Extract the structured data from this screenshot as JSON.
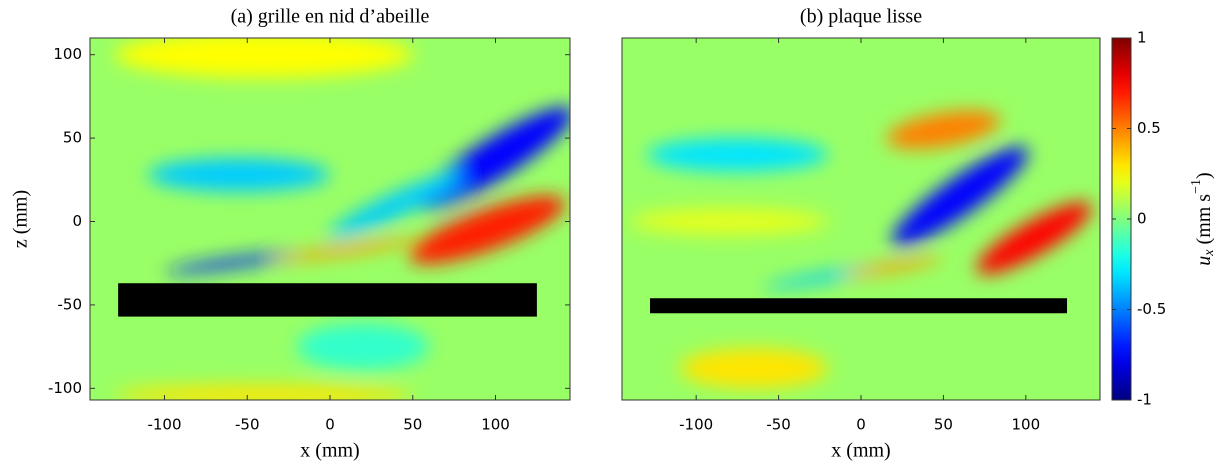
{
  "chart_data": [
    {
      "type": "field",
      "title": "(a) grille en nid d’abeille",
      "xlabel": "x (mm)",
      "ylabel": "z (mm)",
      "xlim": [
        -145,
        145
      ],
      "ylim": [
        -107,
        110
      ],
      "xticks": [
        -100,
        -50,
        0,
        50,
        100
      ],
      "yticks": [
        -100,
        -50,
        0,
        50,
        100
      ],
      "background_value": 0.05,
      "features": [
        {
          "x": -40,
          "z": 100,
          "rx": 90,
          "rz": 14,
          "angle": 0,
          "value": 0.25
        },
        {
          "x": -55,
          "z": 28,
          "rx": 55,
          "rz": 10,
          "angle": 0,
          "value": -0.35
        },
        {
          "x": 100,
          "z": 38,
          "rx": 55,
          "rz": 12,
          "angle": -32,
          "value": -0.75
        },
        {
          "x": 40,
          "z": 10,
          "rx": 45,
          "rz": 7,
          "angle": -25,
          "value": -0.35
        },
        {
          "x": 95,
          "z": -5,
          "rx": 50,
          "rz": 12,
          "angle": -20,
          "value": 0.7
        },
        {
          "x": -60,
          "z": -25,
          "rx": 40,
          "rz": 3,
          "angle": -8,
          "value": -0.7
        },
        {
          "x": 10,
          "z": -17,
          "rx": 45,
          "rz": 3,
          "angle": -8,
          "value": 0.45
        },
        {
          "x": -40,
          "z": -104,
          "rx": 90,
          "rz": 6,
          "angle": 0,
          "value": 0.3
        },
        {
          "x": 20,
          "z": -75,
          "rx": 40,
          "rz": 14,
          "angle": 0,
          "value": -0.15
        }
      ],
      "obstacle": {
        "x": [
          -128,
          125
        ],
        "z": [
          -57,
          -37
        ]
      }
    },
    {
      "type": "field",
      "title": "(b) plaque lisse",
      "xlabel": "x (mm)",
      "xlim": [
        -145,
        145
      ],
      "ylim": [
        -107,
        110
      ],
      "xticks": [
        -100,
        -50,
        0,
        50,
        100
      ],
      "background_value": 0.05,
      "features": [
        {
          "x": 50,
          "z": 55,
          "rx": 35,
          "rz": 10,
          "angle": -10,
          "value": 0.5
        },
        {
          "x": -75,
          "z": 40,
          "rx": 55,
          "rz": 10,
          "angle": 0,
          "value": -0.3
        },
        {
          "x": 60,
          "z": 15,
          "rx": 50,
          "rz": 11,
          "angle": -35,
          "value": -0.75
        },
        {
          "x": 105,
          "z": -10,
          "rx": 40,
          "rz": 10,
          "angle": -30,
          "value": 0.75
        },
        {
          "x": -20,
          "z": -33,
          "rx": 40,
          "rz": 3,
          "angle": -10,
          "value": -0.35
        },
        {
          "x": 20,
          "z": -27,
          "rx": 30,
          "rz": 3,
          "angle": -10,
          "value": 0.45
        },
        {
          "x": -65,
          "z": -88,
          "rx": 45,
          "rz": 12,
          "angle": 0,
          "value": 0.3
        },
        {
          "x": -80,
          "z": 0,
          "rx": 60,
          "rz": 8,
          "angle": 0,
          "value": 0.2
        }
      ],
      "obstacle": {
        "x": [
          -128,
          125
        ],
        "z": [
          -55,
          -46
        ]
      },
      "clim": [
        -1,
        1
      ],
      "cticks": [
        -1,
        -0.5,
        0,
        0.5,
        1
      ],
      "colorbar_label": [
        "u",
        "x",
        " (mm s",
        "−1",
        ")"
      ]
    }
  ]
}
